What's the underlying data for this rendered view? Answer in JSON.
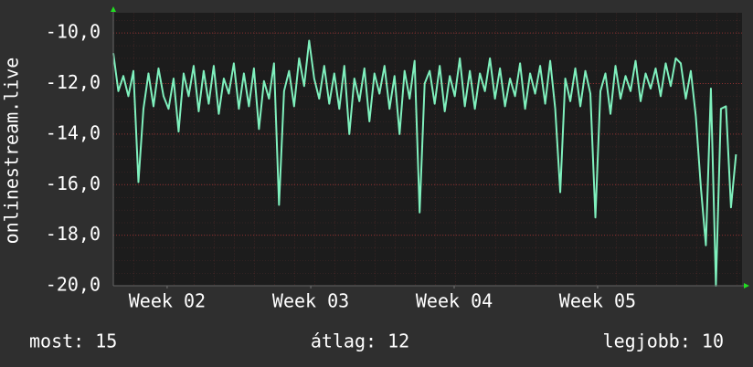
{
  "chart_data": {
    "type": "line",
    "ylabel": "onlinestream.live",
    "x": [
      0,
      0.25,
      0.5,
      0.75,
      1,
      1.25,
      1.5,
      1.75,
      2,
      2.25,
      2.5,
      2.75,
      3,
      3.25,
      3.5,
      3.75,
      4,
      4.25,
      4.5,
      4.75,
      5,
      5.25,
      5.5,
      5.75,
      6,
      6.25,
      6.5,
      6.75,
      7,
      7.25,
      7.5,
      7.75,
      8,
      8.25,
      8.5,
      8.75,
      9,
      9.25,
      9.5,
      9.75,
      10,
      10.25,
      10.5,
      10.75,
      11,
      11.25,
      11.5,
      11.75,
      12,
      12.25,
      12.5,
      12.75,
      13,
      13.25,
      13.5,
      13.75,
      14,
      14.25,
      14.5,
      14.75,
      15,
      15.25,
      15.5,
      15.75,
      16,
      16.25,
      16.5,
      16.75,
      17,
      17.25,
      17.5,
      17.75,
      18,
      18.25,
      18.5,
      18.75,
      19,
      19.25,
      19.5,
      19.75,
      20,
      20.25,
      20.5,
      20.75,
      21,
      21.25,
      21.5,
      21.75,
      22,
      22.25,
      22.5,
      22.75,
      23,
      23.25,
      23.5,
      23.75,
      24,
      24.25,
      24.5,
      24.75,
      25,
      25.25,
      25.5,
      25.75,
      26,
      26.25,
      26.5,
      26.75,
      27,
      27.25,
      27.5,
      27.75,
      28,
      28.25,
      28.5,
      28.75,
      29,
      29.25,
      29.5,
      29.75,
      30,
      30.25,
      30.5,
      30.75,
      31
    ],
    "series": [
      {
        "color": "#7ff0bd",
        "values": [
          -10.8,
          -12.3,
          -11.7,
          -12.5,
          -11.5,
          -15.9,
          -13.0,
          -11.6,
          -12.9,
          -11.4,
          -12.5,
          -13.0,
          -11.8,
          -13.9,
          -11.6,
          -12.5,
          -11.3,
          -13.1,
          -11.5,
          -12.8,
          -11.3,
          -13.2,
          -11.8,
          -12.4,
          -11.2,
          -13.0,
          -11.6,
          -12.9,
          -11.4,
          -13.8,
          -11.9,
          -12.6,
          -11.2,
          -16.8,
          -12.3,
          -11.5,
          -12.9,
          -11.0,
          -12.1,
          -10.3,
          -11.8,
          -12.6,
          -11.3,
          -12.8,
          -11.6,
          -13.0,
          -11.3,
          -14.0,
          -11.8,
          -12.7,
          -11.4,
          -13.5,
          -11.6,
          -12.4,
          -11.3,
          -13.0,
          -11.7,
          -14.0,
          -11.5,
          -12.6,
          -11.1,
          -17.1,
          -12.0,
          -11.5,
          -12.8,
          -11.3,
          -13.1,
          -11.7,
          -12.5,
          -11.0,
          -12.9,
          -11.5,
          -13.0,
          -11.6,
          -12.3,
          -11.0,
          -12.6,
          -11.4,
          -12.9,
          -11.8,
          -12.5,
          -11.2,
          -13.0,
          -11.6,
          -12.4,
          -11.3,
          -12.8,
          -11.1,
          -13.0,
          -16.3,
          -11.8,
          -12.7,
          -11.4,
          -12.9,
          -11.5,
          -12.4,
          -17.3,
          -12.3,
          -11.6,
          -13.2,
          -11.3,
          -12.6,
          -11.7,
          -12.3,
          -11.1,
          -12.7,
          -11.6,
          -12.2,
          -11.4,
          -12.5,
          -11.2,
          -12.1,
          -11.0,
          -11.2,
          -12.6,
          -11.5,
          -13.3,
          -16.1,
          -18.4,
          -12.2,
          -20.0,
          -13.0,
          -12.9,
          -16.9,
          -14.8
        ]
      }
    ],
    "xlim": [
      0,
      31.3
    ],
    "xticks": [
      {
        "value": 2.68,
        "label": "Week 02"
      },
      {
        "value": 9.83,
        "label": "Week 03"
      },
      {
        "value": 16.97,
        "label": "Week 04"
      },
      {
        "value": 24.11,
        "label": "Week 05"
      }
    ],
    "ylim": [
      -20,
      -9.2
    ],
    "yticks": [
      {
        "value": -20,
        "label": "-20,0"
      },
      {
        "value": -18,
        "label": "-18,0"
      },
      {
        "value": -16,
        "label": "-16,0"
      },
      {
        "value": -14,
        "label": "-14,0"
      },
      {
        "value": -12,
        "label": "-12,0"
      },
      {
        "value": -10,
        "label": "-10,0"
      }
    ],
    "grid": true,
    "stats": [
      "most: 15",
      "átlag: 12",
      "legjobb: 10"
    ]
  }
}
